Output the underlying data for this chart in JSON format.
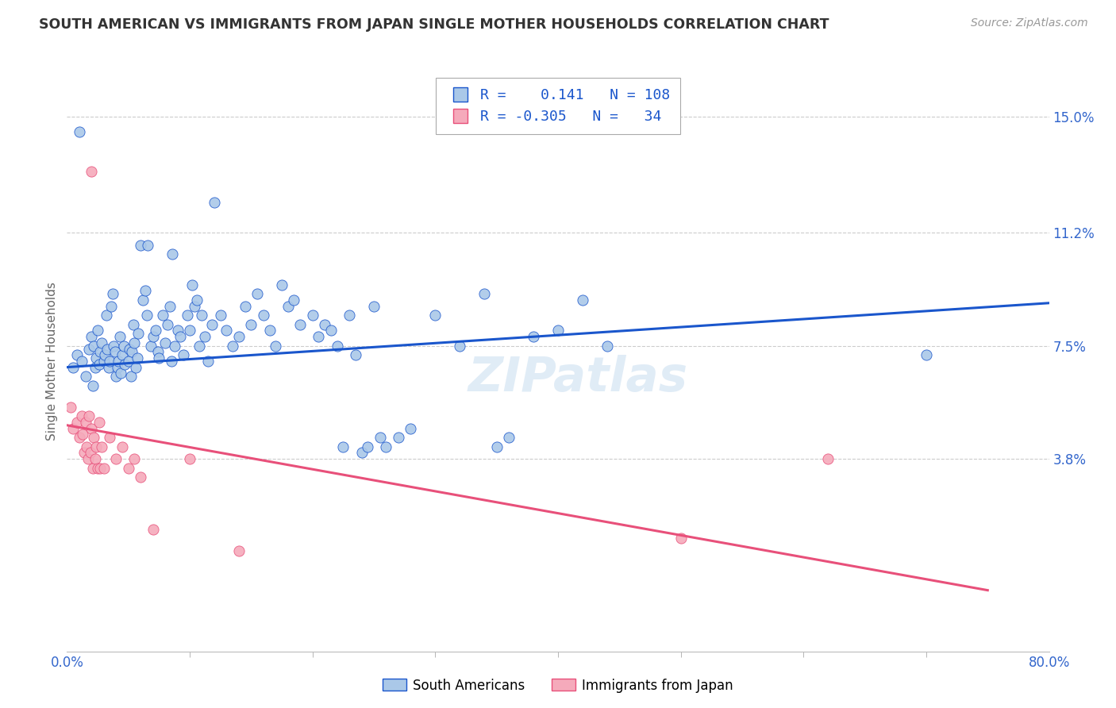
{
  "title": "SOUTH AMERICAN VS IMMIGRANTS FROM JAPAN SINGLE MOTHER HOUSEHOLDS CORRELATION CHART",
  "source": "Source: ZipAtlas.com",
  "ylabel": "Single Mother Households",
  "ytick_labels": [
    "3.8%",
    "7.5%",
    "11.2%",
    "15.0%"
  ],
  "ytick_values": [
    3.8,
    7.5,
    11.2,
    15.0
  ],
  "xlim": [
    0.0,
    80.0
  ],
  "ylim": [
    -2.5,
    16.5
  ],
  "legend_blue_r": "0.141",
  "legend_blue_n": "108",
  "legend_pink_r": "-0.305",
  "legend_pink_n": "34",
  "legend_label_blue": "South Americans",
  "legend_label_pink": "Immigrants from Japan",
  "blue_color": "#aac8e8",
  "pink_color": "#f5aabb",
  "line_blue": "#1a56cc",
  "line_pink": "#e8507a",
  "watermark": "ZIPatlas",
  "blue_scatter": [
    [
      0.5,
      6.8
    ],
    [
      0.8,
      7.2
    ],
    [
      1.0,
      14.5
    ],
    [
      1.2,
      7.0
    ],
    [
      1.5,
      6.5
    ],
    [
      1.8,
      7.4
    ],
    [
      2.0,
      7.8
    ],
    [
      2.1,
      6.2
    ],
    [
      2.2,
      7.5
    ],
    [
      2.3,
      6.8
    ],
    [
      2.4,
      7.1
    ],
    [
      2.5,
      8.0
    ],
    [
      2.6,
      6.9
    ],
    [
      2.7,
      7.3
    ],
    [
      2.8,
      7.6
    ],
    [
      3.0,
      7.0
    ],
    [
      3.1,
      7.2
    ],
    [
      3.2,
      8.5
    ],
    [
      3.3,
      7.4
    ],
    [
      3.4,
      6.8
    ],
    [
      3.5,
      7.0
    ],
    [
      3.6,
      8.8
    ],
    [
      3.7,
      9.2
    ],
    [
      3.8,
      7.5
    ],
    [
      3.9,
      7.3
    ],
    [
      4.0,
      6.5
    ],
    [
      4.1,
      6.8
    ],
    [
      4.2,
      7.0
    ],
    [
      4.3,
      7.8
    ],
    [
      4.4,
      6.6
    ],
    [
      4.5,
      7.2
    ],
    [
      4.6,
      7.5
    ],
    [
      4.7,
      6.9
    ],
    [
      5.0,
      7.0
    ],
    [
      5.1,
      7.4
    ],
    [
      5.2,
      6.5
    ],
    [
      5.3,
      7.3
    ],
    [
      5.4,
      8.2
    ],
    [
      5.5,
      7.6
    ],
    [
      5.6,
      6.8
    ],
    [
      5.7,
      7.1
    ],
    [
      5.8,
      7.9
    ],
    [
      6.0,
      10.8
    ],
    [
      6.2,
      9.0
    ],
    [
      6.4,
      9.3
    ],
    [
      6.5,
      8.5
    ],
    [
      6.6,
      10.8
    ],
    [
      6.8,
      7.5
    ],
    [
      7.0,
      7.8
    ],
    [
      7.2,
      8.0
    ],
    [
      7.4,
      7.3
    ],
    [
      7.5,
      7.1
    ],
    [
      7.8,
      8.5
    ],
    [
      8.0,
      7.6
    ],
    [
      8.2,
      8.2
    ],
    [
      8.4,
      8.8
    ],
    [
      8.5,
      7.0
    ],
    [
      8.6,
      10.5
    ],
    [
      8.8,
      7.5
    ],
    [
      9.0,
      8.0
    ],
    [
      9.2,
      7.8
    ],
    [
      9.5,
      7.2
    ],
    [
      9.8,
      8.5
    ],
    [
      10.0,
      8.0
    ],
    [
      10.2,
      9.5
    ],
    [
      10.4,
      8.8
    ],
    [
      10.6,
      9.0
    ],
    [
      10.8,
      7.5
    ],
    [
      11.0,
      8.5
    ],
    [
      11.2,
      7.8
    ],
    [
      11.5,
      7.0
    ],
    [
      11.8,
      8.2
    ],
    [
      12.0,
      12.2
    ],
    [
      12.5,
      8.5
    ],
    [
      13.0,
      8.0
    ],
    [
      13.5,
      7.5
    ],
    [
      14.0,
      7.8
    ],
    [
      14.5,
      8.8
    ],
    [
      15.0,
      8.2
    ],
    [
      15.5,
      9.2
    ],
    [
      16.0,
      8.5
    ],
    [
      16.5,
      8.0
    ],
    [
      17.0,
      7.5
    ],
    [
      17.5,
      9.5
    ],
    [
      18.0,
      8.8
    ],
    [
      18.5,
      9.0
    ],
    [
      19.0,
      8.2
    ],
    [
      20.0,
      8.5
    ],
    [
      20.5,
      7.8
    ],
    [
      21.0,
      8.2
    ],
    [
      21.5,
      8.0
    ],
    [
      22.0,
      7.5
    ],
    [
      22.5,
      4.2
    ],
    [
      23.0,
      8.5
    ],
    [
      23.5,
      7.2
    ],
    [
      24.0,
      4.0
    ],
    [
      24.5,
      4.2
    ],
    [
      25.0,
      8.8
    ],
    [
      25.5,
      4.5
    ],
    [
      26.0,
      4.2
    ],
    [
      27.0,
      4.5
    ],
    [
      28.0,
      4.8
    ],
    [
      30.0,
      8.5
    ],
    [
      32.0,
      7.5
    ],
    [
      34.0,
      9.2
    ],
    [
      35.0,
      4.2
    ],
    [
      36.0,
      4.5
    ],
    [
      38.0,
      7.8
    ],
    [
      40.0,
      8.0
    ],
    [
      42.0,
      9.0
    ],
    [
      44.0,
      7.5
    ],
    [
      70.0,
      7.2
    ]
  ],
  "pink_scatter": [
    [
      0.5,
      4.8
    ],
    [
      0.8,
      5.0
    ],
    [
      1.0,
      4.5
    ],
    [
      1.2,
      5.2
    ],
    [
      1.3,
      4.6
    ],
    [
      1.4,
      4.0
    ],
    [
      1.5,
      5.0
    ],
    [
      1.6,
      4.2
    ],
    [
      1.7,
      3.8
    ],
    [
      1.8,
      5.2
    ],
    [
      1.9,
      4.0
    ],
    [
      2.0,
      4.8
    ],
    [
      2.1,
      3.5
    ],
    [
      2.2,
      4.5
    ],
    [
      2.3,
      3.8
    ],
    [
      2.4,
      4.2
    ],
    [
      2.5,
      3.5
    ],
    [
      2.6,
      5.0
    ],
    [
      2.7,
      3.5
    ],
    [
      2.8,
      4.2
    ],
    [
      3.0,
      3.5
    ],
    [
      3.5,
      4.5
    ],
    [
      4.0,
      3.8
    ],
    [
      4.5,
      4.2
    ],
    [
      5.0,
      3.5
    ],
    [
      5.5,
      3.8
    ],
    [
      6.0,
      3.2
    ],
    [
      7.0,
      1.5
    ],
    [
      10.0,
      3.8
    ],
    [
      2.0,
      13.2
    ],
    [
      0.3,
      5.5
    ],
    [
      14.0,
      0.8
    ],
    [
      50.0,
      1.2
    ],
    [
      62.0,
      3.8
    ]
  ],
  "blue_line_x": [
    0.0,
    80.0
  ],
  "blue_line_y": [
    6.8,
    8.9
  ],
  "pink_line_x": [
    0.0,
    75.0
  ],
  "pink_line_y": [
    4.9,
    -0.5
  ],
  "background_color": "#ffffff",
  "grid_color": "#cccccc",
  "title_color": "#333333",
  "axis_label_color": "#666666",
  "right_tick_color": "#3366cc",
  "xtick_minor": [
    10,
    20,
    30,
    40,
    50,
    60,
    70
  ],
  "xtick_ends": [
    0,
    80
  ]
}
